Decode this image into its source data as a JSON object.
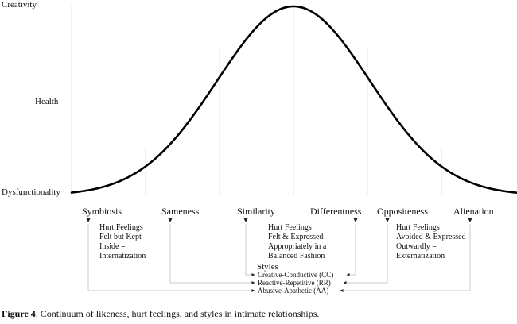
{
  "axis": {
    "top_label": "Creativity",
    "mid_label": "Health",
    "bottom_label": "Dysfunctionality"
  },
  "categories": [
    "Symbiosis",
    "Sameness",
    "Similarity",
    "Differentness",
    "Oppositeness",
    "Alienation"
  ],
  "descriptions": {
    "left": [
      "Hurt Feelings",
      "Felt but Kept",
      "Inside =",
      "Internatization"
    ],
    "center": [
      "Hurt Feelings",
      "Felt & Expressed",
      "Appropriately in a",
      "Balanced Fashion"
    ],
    "right": [
      "Hurt Feelings",
      "Avoided & Expressed",
      "Outwardly =",
      "Externatization"
    ]
  },
  "styles": {
    "title": "Styles",
    "items": [
      "Creative-Conductive (CC)",
      "Reactive-Repetitive (RR)",
      "Abusive-Apathetic (AA)"
    ]
  },
  "caption": {
    "label": "Figure 4",
    "text": ". Continuum of likeness, hurt feelings, and styles in intimate relationships."
  }
}
